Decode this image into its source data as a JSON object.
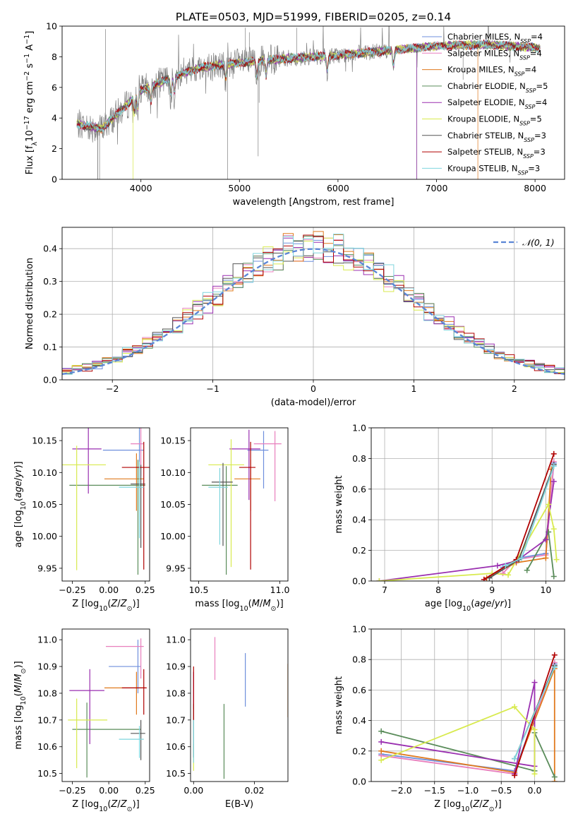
{
  "figure": {
    "title": "PLATE=0503, MJD=51999, FIBERID=0205, z=0.14"
  },
  "models": [
    {
      "name": "Chabrier MILES",
      "nssp": "4",
      "color": "#6f8fdc"
    },
    {
      "name": "Salpeter MILES",
      "nssp": "4",
      "color": "#e87fbd"
    },
    {
      "name": "Kroupa MILES",
      "nssp": "4",
      "color": "#e07a1e"
    },
    {
      "name": "Chabrier ELODIE",
      "nssp": "5",
      "color": "#5a8c5a"
    },
    {
      "name": "Salpeter ELODIE",
      "nssp": "4",
      "color": "#9a2fb0"
    },
    {
      "name": "Kroupa ELODIE",
      "nssp": "5",
      "color": "#d8ea4e"
    },
    {
      "name": "Chabrier STELIB",
      "nssp": "3",
      "color": "#555555"
    },
    {
      "name": "Salpeter STELIB",
      "nssp": "3",
      "color": "#b00000"
    },
    {
      "name": "Kroupa STELIB",
      "nssp": "3",
      "color": "#7fd6de"
    }
  ],
  "chart_data": [
    {
      "id": "spectrum",
      "type": "line",
      "xlabel": "wavelength [Angstrom, rest frame]",
      "ylabel": "Flux [f_λ10^-17 erg cm^-2 s^-1 A^-1]",
      "xlim": [
        3200,
        8300
      ],
      "ylim": [
        0,
        10
      ],
      "xticks": [
        4000,
        5000,
        6000,
        7000,
        8000
      ],
      "yticks": [
        0,
        2,
        4,
        6,
        8,
        10
      ],
      "data_color": "#808080",
      "continuum_knots": {
        "x": [
          3350,
          3600,
          3800,
          4000,
          4300,
          4600,
          5000,
          5500,
          6000,
          6500,
          7000,
          7500,
          8000,
          8050
        ],
        "y": [
          3.6,
          3.3,
          4.5,
          5.8,
          6.6,
          7.3,
          7.6,
          7.9,
          8.1,
          8.4,
          8.7,
          8.8,
          8.6,
          8.6
        ]
      },
      "model_cutoffs": [
        {
          "model": "Kroupa ELODIE",
          "wavelength": 3920
        },
        {
          "model": "Chabrier ELODIE",
          "wavelength": 6800
        },
        {
          "model": "Salpeter ELODIE",
          "wavelength": 6800
        },
        {
          "model": "Kroupa MILES",
          "wavelength": 7420
        },
        {
          "model": "Chabrier STELIB",
          "wavelength": 3560
        }
      ]
    },
    {
      "id": "residuals",
      "type": "line",
      "xlabel": "(data-model)/error",
      "ylabel": "Normed distribution",
      "xlim": [
        -2.5,
        2.5
      ],
      "ylim": [
        0,
        0.465
      ],
      "xticks": [
        -2,
        -1,
        0,
        1,
        2
      ],
      "yticks": [
        0.0,
        0.1,
        0.2,
        0.3,
        0.4
      ],
      "reference_label": "𝒩(0, 1)",
      "reference_color": "#5b86d6",
      "bin_width": 0.1
    },
    {
      "id": "age-vs-Z",
      "type": "scatter",
      "xlabel": "Z [log10(Z/Z⊙)]",
      "ylabel": "age  [log10(age/yr)]",
      "xlim": [
        -0.32,
        0.28
      ],
      "ylim": [
        9.93,
        10.17
      ],
      "xticks": [
        -0.25,
        0.0,
        0.25
      ],
      "yticks": [
        9.95,
        10.0,
        10.05,
        10.1,
        10.15
      ],
      "points": [
        {
          "model": "Chabrier MILES",
          "x": 0.21,
          "y": 10.135,
          "xerr": [
            0.25,
            0.03
          ],
          "yerr": [
            0.06,
            0.05
          ]
        },
        {
          "model": "Salpeter MILES",
          "x": 0.22,
          "y": 10.145,
          "xerr": [
            0.07,
            0.02
          ],
          "yerr": [
            0.05,
            0.03
          ]
        },
        {
          "model": "Kroupa MILES",
          "x": 0.19,
          "y": 10.09,
          "xerr": [
            0.22,
            0.05
          ],
          "yerr": [
            0.05,
            0.04
          ]
        },
        {
          "model": "Chabrier ELODIE",
          "x": 0.2,
          "y": 10.08,
          "xerr": [
            0.47,
            0.05
          ],
          "yerr": [
            0.14,
            0.04
          ]
        },
        {
          "model": "Salpeter ELODIE",
          "x": -0.14,
          "y": 10.137,
          "xerr": [
            0.11,
            0.09
          ],
          "yerr": [
            0.07,
            0.04
          ]
        },
        {
          "model": "Kroupa ELODIE",
          "x": -0.22,
          "y": 10.112,
          "xerr": [
            0.1,
            0.2
          ],
          "yerr": [
            0.165,
            0.03
          ]
        },
        {
          "model": "Chabrier STELIB",
          "x": 0.22,
          "y": 10.082,
          "xerr": [
            0.07,
            0.03
          ],
          "yerr": [
            0.1,
            0.03
          ]
        },
        {
          "model": "Salpeter STELIB",
          "x": 0.24,
          "y": 10.108,
          "xerr": [
            0.15,
            0.04
          ],
          "yerr": [
            0.16,
            0.04
          ]
        },
        {
          "model": "Kroupa STELIB",
          "x": 0.21,
          "y": 10.077,
          "xerr": [
            0.14,
            0.03
          ],
          "yerr": [
            0.08,
            0.04
          ]
        }
      ]
    },
    {
      "id": "age-vs-mass",
      "type": "scatter",
      "xlabel": "mass [log10(M/M⊙)]",
      "ylabel": "",
      "xlim": [
        10.45,
        11.05
      ],
      "ylim": [
        9.93,
        10.17
      ],
      "xticks": [
        10.5,
        11.0
      ],
      "yticks": [
        9.95,
        10.0,
        10.05,
        10.1,
        10.15
      ],
      "points": [
        {
          "model": "Chabrier MILES",
          "x": 10.9,
          "y": 10.135,
          "xerr": [
            0.1,
            0.03
          ],
          "yerr": [
            0.06,
            0.03
          ]
        },
        {
          "model": "Salpeter MILES",
          "x": 10.97,
          "y": 10.145,
          "xerr": [
            0.13,
            0.04
          ],
          "yerr": [
            0.09,
            0.02
          ]
        },
        {
          "model": "Kroupa MILES",
          "x": 10.82,
          "y": 10.09,
          "xerr": [
            0.1,
            0.06
          ],
          "yerr": [
            0.05,
            0.03
          ]
        },
        {
          "model": "Chabrier ELODIE",
          "x": 10.67,
          "y": 10.08,
          "xerr": [
            0.15,
            0.07
          ],
          "yerr": [
            0.14,
            0.03
          ]
        },
        {
          "model": "Salpeter ELODIE",
          "x": 10.81,
          "y": 10.137,
          "xerr": [
            0.12,
            0.07
          ],
          "yerr": [
            0.08,
            0.03
          ]
        },
        {
          "model": "Kroupa ELODIE",
          "x": 10.7,
          "y": 10.112,
          "xerr": [
            0.14,
            0.08
          ],
          "yerr": [
            0.16,
            0.04
          ]
        },
        {
          "model": "Chabrier STELIB",
          "x": 10.65,
          "y": 10.085,
          "xerr": [
            0.07,
            0.06
          ],
          "yerr": [
            0.1,
            0.03
          ]
        },
        {
          "model": "Salpeter STELIB",
          "x": 10.82,
          "y": 10.108,
          "xerr": [
            0.07,
            0.03
          ],
          "yerr": [
            0.16,
            0.04
          ]
        },
        {
          "model": "Kroupa STELIB",
          "x": 10.63,
          "y": 10.077,
          "xerr": [
            0.07,
            0.05
          ],
          "yerr": [
            0.09,
            0.03
          ]
        }
      ]
    },
    {
      "id": "weight-vs-age",
      "type": "line",
      "xlabel": "age  [log10(age/yr)]",
      "ylabel": "mass weight",
      "xlim": [
        6.75,
        10.35
      ],
      "ylim": [
        0,
        1
      ],
      "xticks": [
        7,
        8,
        9,
        10
      ],
      "yticks": [
        0.0,
        0.2,
        0.4,
        0.6,
        0.8,
        1.0
      ],
      "series": [
        {
          "model": "Chabrier MILES",
          "x": [
            9.2,
            9.5,
            10.0,
            10.15
          ],
          "y": [
            0.09,
            0.15,
            0.18,
            0.77
          ]
        },
        {
          "model": "Salpeter MILES",
          "x": [
            9.2,
            9.45,
            10.0,
            10.15
          ],
          "y": [
            0.05,
            0.14,
            0.17,
            0.78
          ]
        },
        {
          "model": "Kroupa MILES",
          "x": [
            8.9,
            9.45,
            10.0,
            10.1
          ],
          "y": [
            0.02,
            0.12,
            0.15,
            0.73
          ]
        },
        {
          "model": "Chabrier ELODIE",
          "x": [
            9.65,
            10.05,
            10.15
          ],
          "y": [
            0.07,
            0.32,
            0.03
          ]
        },
        {
          "model": "Salpeter ELODIE",
          "x": [
            6.9,
            9.1,
            9.45,
            10.0,
            10.15
          ],
          "y": [
            0.0,
            0.1,
            0.13,
            0.27,
            0.65
          ]
        },
        {
          "model": "Kroupa ELODIE",
          "x": [
            6.9,
            9.0,
            9.3,
            10.05,
            10.15,
            10.2
          ],
          "y": [
            0.0,
            0.05,
            0.04,
            0.5,
            0.34,
            0.14
          ]
        },
        {
          "model": "Chabrier STELIB",
          "x": [
            8.95,
            9.5,
            10.15
          ],
          "y": [
            0.02,
            0.14,
            0.76
          ]
        },
        {
          "model": "Salpeter STELIB",
          "x": [
            8.85,
            9.45,
            10.15
          ],
          "y": [
            0.01,
            0.14,
            0.83
          ]
        },
        {
          "model": "Kroupa STELIB",
          "x": [
            9.25,
            9.55,
            10.15
          ],
          "y": [
            0.1,
            0.15,
            0.75
          ]
        }
      ]
    },
    {
      "id": "mass-vs-Z",
      "type": "scatter",
      "xlabel": "Z [log10(Z/Z⊙)]",
      "ylabel": "mass [log10(M/M⊙)]",
      "xlim": [
        -0.32,
        0.28
      ],
      "ylim": [
        10.47,
        11.04
      ],
      "xticks": [
        -0.25,
        0.0,
        0.25
      ],
      "yticks": [
        10.5,
        10.6,
        10.7,
        10.8,
        10.9,
        11.0
      ],
      "points": [
        {
          "model": "Chabrier MILES",
          "x": 0.2,
          "y": 10.9,
          "xerr": [
            0.2,
            0.02
          ],
          "yerr": [
            0.1,
            0.1
          ]
        },
        {
          "model": "Salpeter MILES",
          "x": 0.22,
          "y": 10.975,
          "xerr": [
            0.24,
            0.02
          ],
          "yerr": [
            0.12,
            0.03
          ]
        },
        {
          "model": "Kroupa MILES",
          "x": 0.19,
          "y": 10.82,
          "xerr": [
            0.22,
            0.06
          ],
          "yerr": [
            0.1,
            0.06
          ]
        },
        {
          "model": "Chabrier ELODIE",
          "x": -0.15,
          "y": 10.665,
          "xerr": [
            0.1,
            0.37
          ],
          "yerr": [
            0.18,
            0.1
          ]
        },
        {
          "model": "Salpeter ELODIE",
          "x": -0.13,
          "y": 10.81,
          "xerr": [
            0.14,
            0.1
          ],
          "yerr": [
            0.2,
            0.08
          ]
        },
        {
          "model": "Kroupa ELODIE",
          "x": -0.22,
          "y": 10.7,
          "xerr": [
            0.06,
            0.21
          ],
          "yerr": [
            0.18,
            0.08
          ]
        },
        {
          "model": "Chabrier STELIB",
          "x": 0.22,
          "y": 10.65,
          "xerr": [
            0.07,
            0.03
          ],
          "yerr": [
            0.1,
            0.05
          ]
        },
        {
          "model": "Salpeter STELIB",
          "x": 0.24,
          "y": 10.82,
          "xerr": [
            0.15,
            0.02
          ],
          "yerr": [
            0.1,
            0.07
          ]
        },
        {
          "model": "Kroupa STELIB",
          "x": 0.21,
          "y": 10.628,
          "xerr": [
            0.14,
            0.03
          ],
          "yerr": [
            0.07,
            0.05
          ]
        }
      ]
    },
    {
      "id": "mass-vs-EBV",
      "type": "scatter",
      "xlabel": "E(B-V)",
      "ylabel": "",
      "xlim": [
        -0.001,
        0.031
      ],
      "ylim": [
        10.47,
        11.04
      ],
      "xticks": [
        0.0,
        0.02
      ],
      "yticks": [
        10.5,
        10.6,
        10.7,
        10.8,
        10.9,
        11.0
      ],
      "points": [
        {
          "model": "Chabrier MILES",
          "x": 0.017,
          "y": 10.85,
          "yerr": [
            0.1,
            0.1
          ]
        },
        {
          "model": "Salpeter MILES",
          "x": 0.007,
          "y": 10.93,
          "yerr": [
            0.08,
            0.08
          ]
        },
        {
          "model": "Kroupa MILES",
          "x": 0.031,
          "y": 10.81,
          "yerr": [
            0.1,
            0.1
          ]
        },
        {
          "model": "Chabrier ELODIE",
          "x": 0.01,
          "y": 10.62,
          "yerr": [
            0.14,
            0.14
          ]
        },
        {
          "model": "Salpeter ELODIE",
          "x": 0.0,
          "y": 10.81,
          "yerr": [
            0.07,
            0.07
          ]
        },
        {
          "model": "Kroupa ELODIE",
          "x": 0.0,
          "y": 10.56,
          "yerr": [
            0.05,
            0.05
          ]
        },
        {
          "model": "Chabrier STELIB",
          "x": 0.0,
          "y": 10.66,
          "yerr": [
            0.1,
            0.1
          ]
        },
        {
          "model": "Salpeter STELIB",
          "x": 0.0,
          "y": 10.8,
          "yerr": [
            0.1,
            0.1
          ]
        },
        {
          "model": "Kroupa STELIB",
          "x": 0.0,
          "y": 10.62,
          "yerr": [
            0.08,
            0.08
          ]
        }
      ]
    },
    {
      "id": "weight-vs-Z",
      "type": "line",
      "xlabel": "Z [log10(Z/Z⊙)]",
      "ylabel": "mass weight",
      "xlim": [
        -2.45,
        0.45
      ],
      "ylim": [
        0,
        1
      ],
      "xticks": [
        -2.0,
        -1.5,
        -1.0,
        -0.5,
        0.0
      ],
      "yticks": [
        0.0,
        0.2,
        0.4,
        0.6,
        0.8,
        1.0
      ],
      "series": [
        {
          "model": "Chabrier MILES",
          "x": [
            -2.3,
            -0.3,
            0.3
          ],
          "y": [
            0.18,
            0.07,
            0.77
          ]
        },
        {
          "model": "Salpeter MILES",
          "x": [
            -2.3,
            -0.3,
            0.3
          ],
          "y": [
            0.17,
            0.05,
            0.78
          ]
        },
        {
          "model": "Kroupa MILES",
          "x": [
            -2.3,
            -0.3,
            0.3,
            0.3
          ],
          "y": [
            0.2,
            0.06,
            0.74,
            0.0
          ]
        },
        {
          "model": "Chabrier ELODIE",
          "x": [
            -2.3,
            0.0,
            0.0,
            0.3
          ],
          "y": [
            0.33,
            0.07,
            0.32,
            0.03
          ]
        },
        {
          "model": "Salpeter ELODIE",
          "x": [
            -2.3,
            0.0,
            0.0,
            -0.3
          ],
          "y": [
            0.26,
            0.1,
            0.65,
            0.05
          ]
        },
        {
          "model": "Kroupa ELODIE",
          "x": [
            -2.3,
            -0.3,
            0.0,
            0.0
          ],
          "y": [
            0.14,
            0.49,
            0.34,
            0.05
          ]
        },
        {
          "model": "Chabrier STELIB",
          "x": [
            -0.3,
            0.3
          ],
          "y": [
            0.15,
            0.76
          ]
        },
        {
          "model": "Salpeter STELIB",
          "x": [
            -0.3,
            0.3
          ],
          "y": [
            0.04,
            0.83
          ]
        },
        {
          "model": "Kroupa STELIB",
          "x": [
            -0.3,
            0.3
          ],
          "y": [
            0.15,
            0.75
          ]
        }
      ]
    }
  ]
}
